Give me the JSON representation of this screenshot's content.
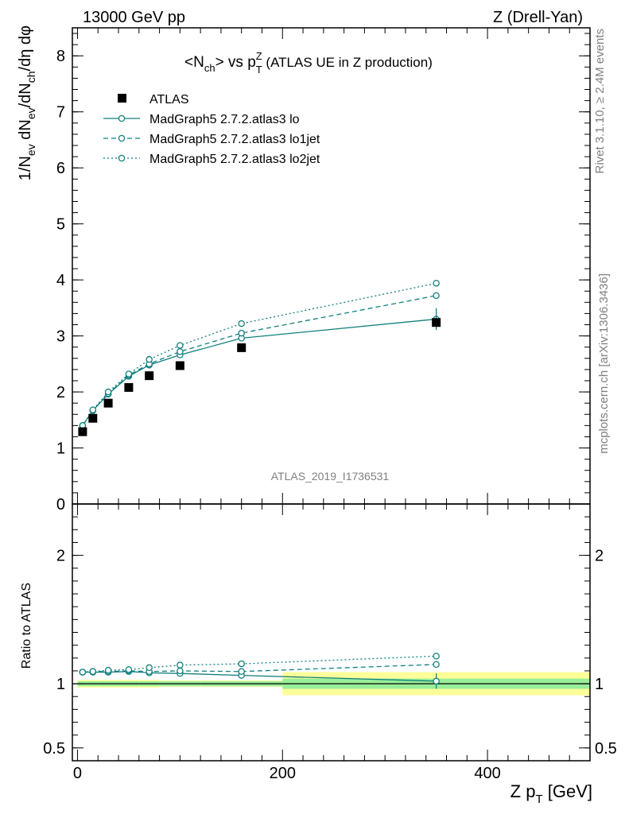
{
  "header": {
    "left": "13000 GeV pp",
    "right": "Z (Drell-Yan)"
  },
  "side_labels": {
    "rivet": "Rivet 3.1.10, ≥ 2.4M events",
    "mcplots": "mcplots.cern.ch [arXiv:1306.3436]"
  },
  "watermark": "ATLAS_2019_I1736531",
  "chart_data": {
    "type": "line",
    "title": "<N_ch> vs p_T^Z (ATLAS UE in Z production)",
    "title_parts": {
      "lt": "<N",
      "ch": "ch",
      "gt": "> vs p",
      "T": "T",
      "Z": "Z",
      "tail": " (ATLAS UE in Z production)"
    },
    "xlabel": "Z p_T [GeV]",
    "xlabel_parts": {
      "main": "Z p",
      "sub": "T",
      "tail": " [GeV]"
    },
    "ylabel": "1/N_ev dN_ev/dN_ch/dη dφ",
    "ylabel_parts": {
      "a": "1/N",
      "ev1": "ev",
      "b": " dN",
      "ev2": "ev",
      "c": "/dN",
      "ch": "ch",
      "d": "/dη dφ"
    },
    "ratio_ylabel": "Ratio to ATLAS",
    "xlim": [
      -5,
      500
    ],
    "ylim": [
      0,
      8.5
    ],
    "ratio_ylim": [
      0.4,
      2.4
    ],
    "x_ticks": [
      0,
      200,
      400
    ],
    "x_tick_labels": [
      "0",
      "200",
      "400"
    ],
    "y_ticks": [
      0,
      1,
      2,
      3,
      4,
      5,
      6,
      7,
      8
    ],
    "y_tick_labels": [
      "0",
      "1",
      "2",
      "3",
      "4",
      "5",
      "6",
      "7",
      "8"
    ],
    "ratio_y_ticks": [
      0.5,
      1,
      2
    ],
    "ratio_y_tick_labels": [
      "0.5",
      "1",
      "2"
    ],
    "legend_position": "top-left",
    "reference": {
      "name": "ATLAS",
      "bins": [
        [
          0,
          10
        ],
        [
          10,
          20
        ],
        [
          20,
          40
        ],
        [
          40,
          60
        ],
        [
          60,
          80
        ],
        [
          80,
          120
        ],
        [
          120,
          200
        ],
        [
          200,
          500
        ]
      ],
      "x": [
        5,
        15,
        30,
        50,
        70,
        100,
        160,
        350
      ],
      "y": [
        1.29,
        1.53,
        1.8,
        2.08,
        2.29,
        2.47,
        2.79,
        3.24
      ],
      "stat_rel": [
        0.02,
        0.02,
        0.02,
        0.02,
        0.02,
        0.02,
        0.02,
        0.04
      ],
      "total_rel": [
        0.03,
        0.03,
        0.03,
        0.03,
        0.03,
        0.025,
        0.025,
        0.09
      ]
    },
    "series": [
      {
        "name": "MadGraph5 2.7.2.atlas3 lo",
        "style": "solid",
        "x": [
          5,
          15,
          30,
          50,
          70,
          100,
          160,
          350
        ],
        "y": [
          1.4,
          1.67,
          1.96,
          2.28,
          2.48,
          2.66,
          2.96,
          3.3
        ],
        "ratio": [
          1.09,
          1.09,
          1.09,
          1.095,
          1.085,
          1.08,
          1.065,
          1.02
        ],
        "ratio_err": [
          0,
          0,
          0,
          0,
          0,
          0,
          0,
          0.06
        ]
      },
      {
        "name": "MadGraph5 2.7.2.atlas3 lo1jet",
        "style": "dashed",
        "x": [
          5,
          15,
          30,
          50,
          70,
          100,
          160,
          350
        ],
        "y": [
          1.4,
          1.67,
          1.97,
          2.3,
          2.5,
          2.72,
          3.05,
          3.72
        ],
        "ratio": [
          1.09,
          1.095,
          1.095,
          1.1,
          1.095,
          1.1,
          1.095,
          1.15
        ],
        "ratio_err": [
          0,
          0,
          0,
          0,
          0,
          0,
          0,
          0
        ]
      },
      {
        "name": "MadGraph5 2.7.2.atlas3 lo2jet",
        "style": "dotted",
        "x": [
          5,
          15,
          30,
          50,
          70,
          100,
          160,
          350
        ],
        "y": [
          1.4,
          1.68,
          2.0,
          2.32,
          2.58,
          2.83,
          3.22,
          3.94
        ],
        "ratio": [
          1.09,
          1.095,
          1.105,
          1.11,
          1.125,
          1.145,
          1.155,
          1.215
        ],
        "ratio_err": [
          0,
          0,
          0,
          0,
          0,
          0,
          0,
          0
        ]
      }
    ],
    "colors": {
      "mc": "#11807f",
      "band_stat": "#99ee99",
      "band_total": "#ffff99",
      "reference": "#000000",
      "grey": "#808080"
    }
  }
}
